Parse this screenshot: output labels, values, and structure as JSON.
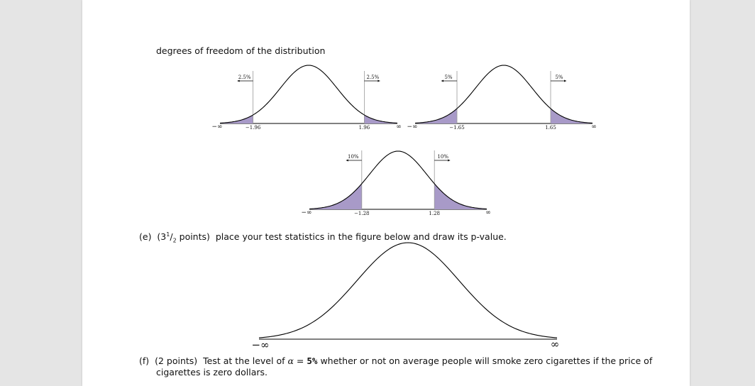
{
  "header_text": "degrees of freedom of the distribution",
  "colors": {
    "tail_fill": "#a89ac8",
    "curve": "#000000",
    "guide": "#999999"
  },
  "chart_data": [
    {
      "type": "area",
      "left_tail_label": "2.5%",
      "right_tail_label": "2.5%",
      "left_cut": -1.96,
      "right_cut": 1.96,
      "tick_labels": [
        "−∞",
        "−1.96",
        "1.96",
        "∞"
      ]
    },
    {
      "type": "area",
      "left_tail_label": "5%",
      "right_tail_label": "5%",
      "left_cut": -1.65,
      "right_cut": 1.65,
      "tick_labels": [
        "−∞",
        "−1.65",
        "1.65",
        "∞"
      ]
    },
    {
      "type": "area",
      "left_tail_label": "10%",
      "right_tail_label": "10%",
      "left_cut": -1.28,
      "right_cut": 1.28,
      "tick_labels": [
        "−∞",
        "−1.28",
        "1.28",
        "∞"
      ]
    },
    {
      "type": "line",
      "tick_labels": [
        "−∞",
        "∞"
      ]
    }
  ],
  "question_e": {
    "label": "(e)",
    "points_prefix": "(3",
    "points_num": "1",
    "points_den": "2",
    "points_suffix": " points)",
    "text": "place your test statistics in the figure below and draw its p-value."
  },
  "question_f": {
    "label": "(f)",
    "points": "(2 points)",
    "text_before": "Test at the level of",
    "alpha_symbol": "α",
    "equals": "=",
    "alpha_value": "5%",
    "text_after": "whether or not on average people will smoke zero cigarettes if the price of",
    "line2": "cigarettes is zero dollars."
  }
}
